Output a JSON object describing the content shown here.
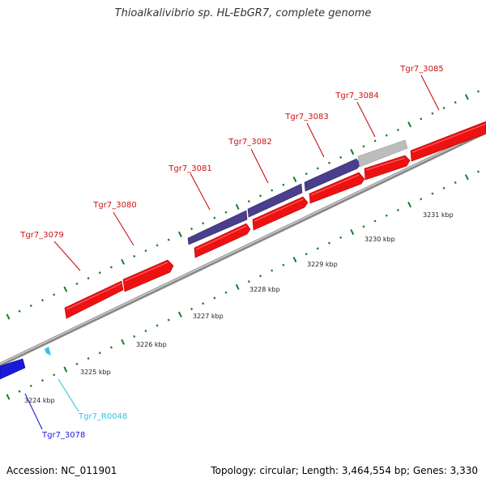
{
  "title": "Thioalkalivibrio sp. HL-EbGR7, complete genome",
  "footer": {
    "accession": "Accession: NC_011901",
    "topology": "Topology: circular; Length: 3,464,554 bp; Genes: 3,330"
  },
  "colors": {
    "gene_forward": "#ee1111",
    "gene_navy": "#4a3f8c",
    "gene_gray": "#bcbcbc",
    "gene_blue": "#1a1adb",
    "rna": "#33c4e6",
    "label_red": "#cc1111",
    "ticks": "#1a7a2a"
  },
  "scale_labels": [
    "3224 kbp",
    "3225 kbp",
    "3226 kbp",
    "3227 kbp",
    "3228 kbp",
    "3229 kbp",
    "3230 kbp",
    "3231 kbp"
  ],
  "gene_labels": {
    "tgr7_3079": "Tgr7_3079",
    "tgr7_3080": "Tgr7_3080",
    "tgr7_3081": "Tgr7_3081",
    "tgr7_3082": "Tgr7_3082",
    "tgr7_3083": "Tgr7_3083",
    "tgr7_3084": "Tgr7_3084",
    "tgr7_3085": "Tgr7_3085",
    "tgr7_r0048": "Tgr7_R0048",
    "tgr7_3078": "Tgr7_3078"
  }
}
